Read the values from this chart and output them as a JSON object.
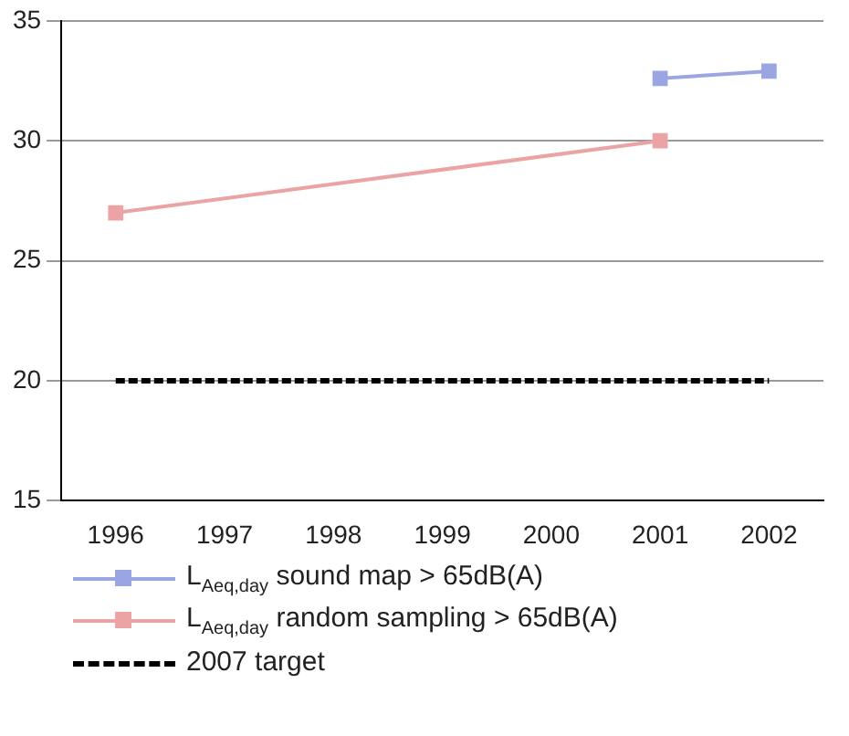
{
  "chart_data": {
    "type": "line",
    "categories": [
      "1996",
      "1997",
      "1998",
      "1999",
      "2000",
      "2001",
      "2002"
    ],
    "series": [
      {
        "name": "L$_{Aeq,day}$ sound map > 65dB(A)",
        "color": "#9aa6e2",
        "values": [
          null,
          null,
          null,
          null,
          null,
          32.6,
          32.9
        ],
        "marker": "square",
        "line_style": "solid"
      },
      {
        "name": "L$_{Aeq,day}$ random sampling > 65dB(A)",
        "color": "#eba3a3",
        "values": [
          27,
          null,
          null,
          null,
          null,
          30,
          null
        ],
        "marker": "square",
        "line_style": "solid"
      },
      {
        "name": "2007 target",
        "color": "#000000",
        "values": [
          20,
          20,
          20,
          20,
          20,
          20,
          20
        ],
        "marker": "none",
        "line_style": "dashed"
      }
    ],
    "ylim": [
      15,
      35
    ],
    "yticks": [
      15,
      20,
      25,
      30,
      35
    ],
    "grid": "y",
    "legend": "bottom"
  }
}
